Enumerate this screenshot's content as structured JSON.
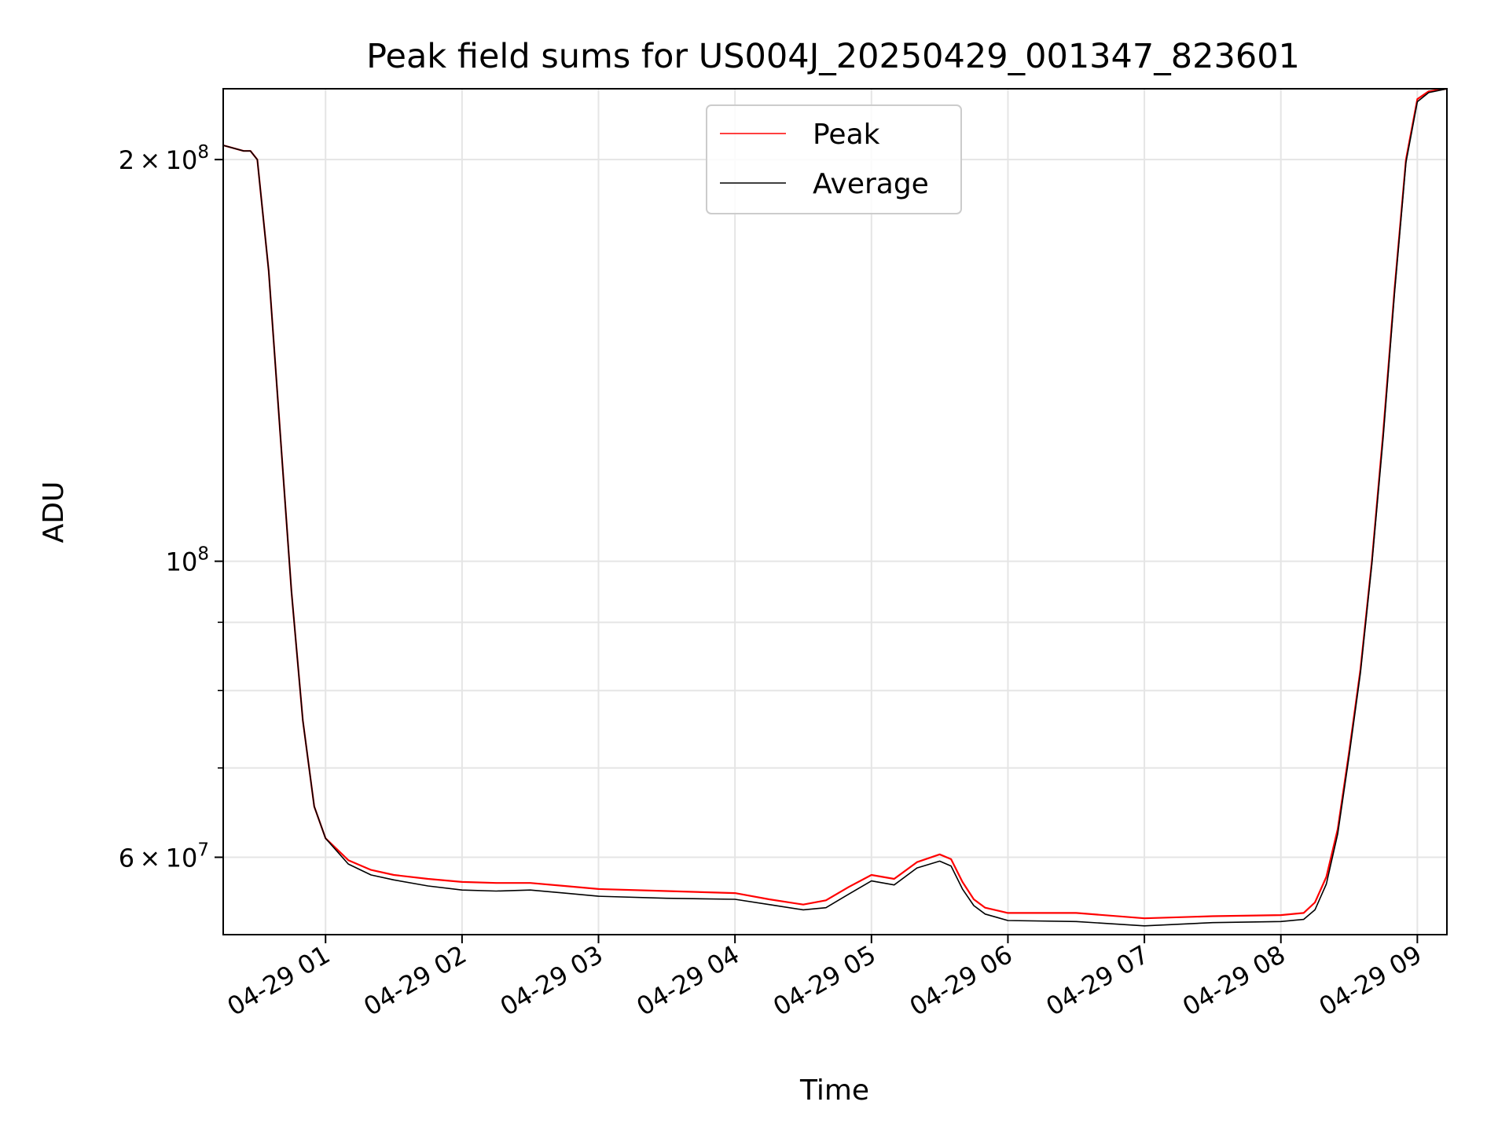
{
  "chart_data": {
    "type": "line",
    "title": "Peak field sums for US004J_20250429_001347_823601",
    "xlabel": "Time",
    "ylabel": "ADU",
    "yscale": "log",
    "grid": true,
    "legend_placement": "upper center",
    "xlim": [
      "2025-04-29 00:15",
      "2025-04-29 09:13"
    ],
    "ylim": [
      52500000,
      226000000
    ],
    "x_ticks": [
      {
        "value": "2025-04-29 01:00",
        "label": "04-29 01"
      },
      {
        "value": "2025-04-29 02:00",
        "label": "04-29 02"
      },
      {
        "value": "2025-04-29 03:00",
        "label": "04-29 03"
      },
      {
        "value": "2025-04-29 04:00",
        "label": "04-29 04"
      },
      {
        "value": "2025-04-29 05:00",
        "label": "04-29 05"
      },
      {
        "value": "2025-04-29 06:00",
        "label": "04-29 06"
      },
      {
        "value": "2025-04-29 07:00",
        "label": "04-29 07"
      },
      {
        "value": "2025-04-29 08:00",
        "label": "04-29 08"
      },
      {
        "value": "2025-04-29 09:00",
        "label": "04-29 09"
      }
    ],
    "y_major_ticks": [
      {
        "value": 60000000,
        "base": "6",
        "exp": "7"
      },
      {
        "value": 100000000,
        "base": "",
        "exp": "8"
      },
      {
        "value": 200000000,
        "base": "2",
        "exp": "8"
      }
    ],
    "y_minor_ticks": [
      70000000,
      80000000,
      90000000
    ],
    "series": [
      {
        "name": "Peak",
        "color": "#ff0000",
        "x": [
          "2025-04-29 00:15",
          "2025-04-29 00:24",
          "2025-04-29 00:27",
          "2025-04-29 00:30",
          "2025-04-29 00:35",
          "2025-04-29 00:40",
          "2025-04-29 00:45",
          "2025-04-29 00:50",
          "2025-04-29 00:55",
          "2025-04-29 01:00",
          "2025-04-29 01:10",
          "2025-04-29 01:20",
          "2025-04-29 01:30",
          "2025-04-29 01:45",
          "2025-04-29 02:00",
          "2025-04-29 02:15",
          "2025-04-29 02:30",
          "2025-04-29 02:45",
          "2025-04-29 03:00",
          "2025-04-29 03:30",
          "2025-04-29 04:00",
          "2025-04-29 04:15",
          "2025-04-29 04:30",
          "2025-04-29 04:40",
          "2025-04-29 04:50",
          "2025-04-29 05:00",
          "2025-04-29 05:10",
          "2025-04-29 05:20",
          "2025-04-29 05:30",
          "2025-04-29 05:35",
          "2025-04-29 05:40",
          "2025-04-29 05:45",
          "2025-04-29 05:50",
          "2025-04-29 06:00",
          "2025-04-29 06:30",
          "2025-04-29 07:00",
          "2025-04-29 07:30",
          "2025-04-29 08:00",
          "2025-04-29 08:10",
          "2025-04-29 08:15",
          "2025-04-29 08:20",
          "2025-04-29 08:25",
          "2025-04-29 08:30",
          "2025-04-29 08:35",
          "2025-04-29 08:40",
          "2025-04-29 08:45",
          "2025-04-29 08:50",
          "2025-04-29 08:55",
          "2025-04-29 09:00",
          "2025-04-29 09:05",
          "2025-04-29 09:13"
        ],
        "y": [
          205000000,
          203000000,
          203000000,
          200000000,
          165000000,
          125000000,
          95000000,
          76000000,
          65500000,
          62000000,
          59700000,
          58700000,
          58200000,
          57800000,
          57500000,
          57400000,
          57400000,
          57100000,
          56800000,
          56600000,
          56400000,
          55800000,
          55300000,
          55700000,
          57000000,
          58200000,
          57800000,
          59500000,
          60300000,
          59800000,
          57500000,
          55800000,
          55000000,
          54500000,
          54500000,
          54000000,
          54200000,
          54300000,
          54500000,
          55500000,
          58000000,
          63000000,
          72000000,
          83000000,
          100000000,
          125000000,
          160000000,
          200000000,
          222000000,
          225000000,
          226000000
        ]
      },
      {
        "name": "Average",
        "color": "#000000",
        "x": [
          "2025-04-29 00:15",
          "2025-04-29 00:24",
          "2025-04-29 00:27",
          "2025-04-29 00:30",
          "2025-04-29 00:35",
          "2025-04-29 00:40",
          "2025-04-29 00:45",
          "2025-04-29 00:50",
          "2025-04-29 00:55",
          "2025-04-29 01:00",
          "2025-04-29 01:10",
          "2025-04-29 01:20",
          "2025-04-29 01:30",
          "2025-04-29 01:45",
          "2025-04-29 02:00",
          "2025-04-29 02:15",
          "2025-04-29 02:30",
          "2025-04-29 02:45",
          "2025-04-29 03:00",
          "2025-04-29 03:30",
          "2025-04-29 04:00",
          "2025-04-29 04:15",
          "2025-04-29 04:30",
          "2025-04-29 04:40",
          "2025-04-29 04:50",
          "2025-04-29 05:00",
          "2025-04-29 05:10",
          "2025-04-29 05:20",
          "2025-04-29 05:30",
          "2025-04-29 05:35",
          "2025-04-29 05:40",
          "2025-04-29 05:45",
          "2025-04-29 05:50",
          "2025-04-29 06:00",
          "2025-04-29 06:30",
          "2025-04-29 07:00",
          "2025-04-29 07:30",
          "2025-04-29 08:00",
          "2025-04-29 08:10",
          "2025-04-29 08:15",
          "2025-04-29 08:20",
          "2025-04-29 08:25",
          "2025-04-29 08:30",
          "2025-04-29 08:35",
          "2025-04-29 08:40",
          "2025-04-29 08:45",
          "2025-04-29 08:50",
          "2025-04-29 08:55",
          "2025-04-29 09:00",
          "2025-04-29 09:05",
          "2025-04-29 09:13"
        ],
        "y": [
          205000000,
          203000000,
          203000000,
          200000000,
          165000000,
          125000000,
          95000000,
          76000000,
          65500000,
          62000000,
          59300000,
          58200000,
          57700000,
          57100000,
          56700000,
          56600000,
          56700000,
          56400000,
          56100000,
          55900000,
          55800000,
          55300000,
          54800000,
          55000000,
          56300000,
          57600000,
          57200000,
          58900000,
          59600000,
          59100000,
          56800000,
          55200000,
          54400000,
          53800000,
          53700000,
          53300000,
          53600000,
          53700000,
          53900000,
          54800000,
          57300000,
          62500000,
          71500000,
          82500000,
          99500000,
          124000000,
          159000000,
          199000000,
          221000000,
          224500000,
          226000000
        ]
      }
    ]
  }
}
